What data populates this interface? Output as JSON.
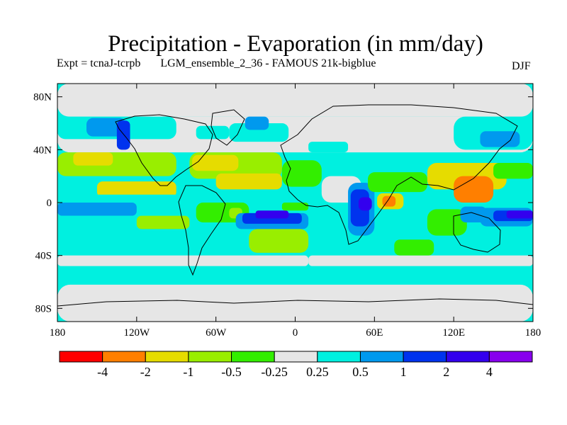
{
  "chart_data": {
    "type": "heatmap",
    "title": "Precipitation - Evaporation (in mm/day)",
    "subtitle_expt": "Expt = tcnaJ-tcrpb",
    "subtitle_run": "LGM_ensemble_2_36 - FAMOUS 21k-bigblue",
    "season": "DJF",
    "x_range": [
      -180,
      180
    ],
    "y_range": [
      -90,
      90
    ],
    "x_ticks": [
      {
        "value": -180,
        "label": "180"
      },
      {
        "value": -120,
        "label": "120W"
      },
      {
        "value": -60,
        "label": "60W"
      },
      {
        "value": 0,
        "label": "0"
      },
      {
        "value": 60,
        "label": "60E"
      },
      {
        "value": 120,
        "label": "120E"
      },
      {
        "value": 180,
        "label": "180"
      }
    ],
    "y_ticks": [
      {
        "value": 80,
        "label": "80N"
      },
      {
        "value": 40,
        "label": "40N"
      },
      {
        "value": 0,
        "label": "0"
      },
      {
        "value": -40,
        "label": "40S"
      },
      {
        "value": -80,
        "label": "80S"
      }
    ],
    "colorbar": {
      "colors": [
        "#ff0000",
        "#ff7f00",
        "#e6dc00",
        "#99ee00",
        "#33ee00",
        "#e6e6e6",
        "#00f0e0",
        "#0099ee",
        "#0033ee",
        "#3300ee",
        "#8800ee"
      ],
      "levels": [
        "-4",
        "-2",
        "-1",
        "-0.5",
        "-0.25",
        "0.25",
        "0.5",
        "1",
        "2",
        "4"
      ]
    },
    "regions": [
      {
        "lon": -180,
        "lat": 65,
        "w": 360,
        "h": 25,
        "level": 5
      },
      {
        "lon": -180,
        "lat": -90,
        "w": 360,
        "h": 28,
        "level": 5
      },
      {
        "lon": -180,
        "lat": -62,
        "w": 360,
        "h": 14,
        "level": 6
      },
      {
        "lon": -180,
        "lat": -48,
        "w": 190,
        "h": 8,
        "level": 5
      },
      {
        "lon": 10,
        "lat": -48,
        "w": 170,
        "h": 8,
        "level": 5
      },
      {
        "lon": -180,
        "lat": 38,
        "w": 360,
        "h": 27,
        "level": 5
      },
      {
        "lon": -180,
        "lat": 48,
        "w": 90,
        "h": 17,
        "level": 6
      },
      {
        "lon": -158,
        "lat": 50,
        "w": 30,
        "h": 14,
        "level": 7
      },
      {
        "lon": -135,
        "lat": 40,
        "w": 10,
        "h": 22,
        "level": 8
      },
      {
        "lon": -75,
        "lat": 48,
        "w": 25,
        "h": 10,
        "level": 6
      },
      {
        "lon": -50,
        "lat": 46,
        "w": 45,
        "h": 14,
        "level": 6
      },
      {
        "lon": -38,
        "lat": 55,
        "w": 18,
        "h": 10,
        "level": 7
      },
      {
        "lon": 120,
        "lat": 40,
        "w": 60,
        "h": 25,
        "level": 6
      },
      {
        "lon": 140,
        "lat": 42,
        "w": 30,
        "h": 12,
        "level": 7
      },
      {
        "lon": 10,
        "lat": 38,
        "w": 30,
        "h": 8,
        "level": 6
      },
      {
        "lon": -180,
        "lat": 20,
        "w": 90,
        "h": 18,
        "level": 3
      },
      {
        "lon": -168,
        "lat": 28,
        "w": 30,
        "h": 10,
        "level": 2
      },
      {
        "lon": -150,
        "lat": 4,
        "w": 60,
        "h": 12,
        "level": 2
      },
      {
        "lon": -80,
        "lat": 18,
        "w": 70,
        "h": 20,
        "level": 3
      },
      {
        "lon": -78,
        "lat": 24,
        "w": 35,
        "h": 12,
        "level": 2
      },
      {
        "lon": -60,
        "lat": 10,
        "w": 50,
        "h": 12,
        "level": 2
      },
      {
        "lon": -10,
        "lat": 12,
        "w": 30,
        "h": 20,
        "level": 4
      },
      {
        "lon": 20,
        "lat": 0,
        "w": 30,
        "h": 20,
        "level": 5
      },
      {
        "lon": -180,
        "lat": 0,
        "w": 100,
        "h": 6,
        "level": 6
      },
      {
        "lon": -180,
        "lat": -10,
        "w": 60,
        "h": 10,
        "level": 7
      },
      {
        "lon": -180,
        "lat": -20,
        "w": 70,
        "h": 10,
        "level": 6
      },
      {
        "lon": -120,
        "lat": -20,
        "w": 40,
        "h": 10,
        "level": 3
      },
      {
        "lon": -75,
        "lat": -15,
        "w": 40,
        "h": 15,
        "level": 4
      },
      {
        "lon": -50,
        "lat": -12,
        "w": 10,
        "h": 8,
        "level": 3
      },
      {
        "lon": -45,
        "lat": -20,
        "w": 55,
        "h": 12,
        "level": 7
      },
      {
        "lon": -40,
        "lat": -16,
        "w": 45,
        "h": 8,
        "level": 8
      },
      {
        "lon": -30,
        "lat": -12,
        "w": 25,
        "h": 6,
        "level": 9
      },
      {
        "lon": -35,
        "lat": -38,
        "w": 45,
        "h": 18,
        "level": 3
      },
      {
        "lon": -10,
        "lat": -6,
        "w": 20,
        "h": 6,
        "level": 4
      },
      {
        "lon": 40,
        "lat": -25,
        "w": 20,
        "h": 40,
        "level": 7
      },
      {
        "lon": 42,
        "lat": -18,
        "w": 14,
        "h": 28,
        "level": 8
      },
      {
        "lon": 48,
        "lat": -6,
        "w": 10,
        "h": 10,
        "level": 9
      },
      {
        "lon": 60,
        "lat": -15,
        "w": 25,
        "h": 15,
        "level": 6
      },
      {
        "lon": 55,
        "lat": 8,
        "w": 45,
        "h": 15,
        "level": 4
      },
      {
        "lon": 62,
        "lat": -5,
        "w": 20,
        "h": 12,
        "level": 2
      },
      {
        "lon": 66,
        "lat": -3,
        "w": 10,
        "h": 8,
        "level": 1
      },
      {
        "lon": 75,
        "lat": -40,
        "w": 30,
        "h": 12,
        "level": 4
      },
      {
        "lon": 100,
        "lat": 10,
        "w": 60,
        "h": 20,
        "level": 2
      },
      {
        "lon": 120,
        "lat": 0,
        "w": 30,
        "h": 20,
        "level": 1
      },
      {
        "lon": 150,
        "lat": 18,
        "w": 30,
        "h": 12,
        "level": 4
      },
      {
        "lon": 100,
        "lat": -25,
        "w": 30,
        "h": 20,
        "level": 4
      },
      {
        "lon": 130,
        "lat": -25,
        "w": 50,
        "h": 25,
        "level": 6
      },
      {
        "lon": 140,
        "lat": -18,
        "w": 40,
        "h": 14,
        "level": 7
      },
      {
        "lon": 150,
        "lat": -14,
        "w": 30,
        "h": 8,
        "level": 8
      },
      {
        "lon": 160,
        "lat": -12,
        "w": 20,
        "h": 6,
        "level": 9
      },
      {
        "lon": 125,
        "lat": -15,
        "w": 20,
        "h": 12,
        "level": 7
      }
    ]
  }
}
